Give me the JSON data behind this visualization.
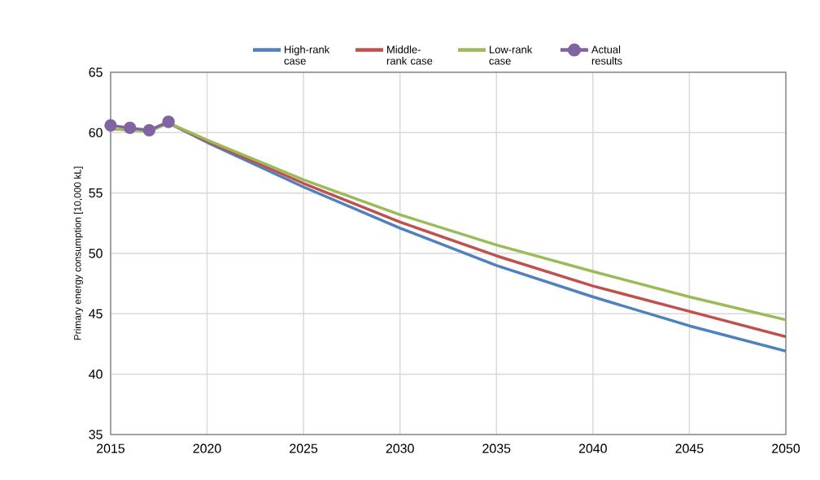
{
  "chart_data": {
    "type": "line",
    "ylabel": "Primary energy consumption [10,000 kL]",
    "xlim": [
      2015,
      2050
    ],
    "xticks": [
      2015,
      2020,
      2025,
      2030,
      2035,
      2040,
      2045,
      2050
    ],
    "ylim": [
      35,
      65
    ],
    "yticks": [
      35,
      40,
      45,
      50,
      55,
      60,
      65
    ],
    "grid": true,
    "legend": "top",
    "line_style": "solid",
    "series": [
      {
        "name": "High-rank case",
        "color": "#4f81bd",
        "marker": "none",
        "x": [
          2018,
          2020,
          2025,
          2030,
          2035,
          2040,
          2045,
          2050
        ],
        "values": [
          60.8,
          59.2,
          55.5,
          52.1,
          49.0,
          46.4,
          44.0,
          41.9
        ]
      },
      {
        "name": "Middle-rank case",
        "color": "#c0504d",
        "marker": "none",
        "x": [
          2018,
          2020,
          2025,
          2030,
          2035,
          2040,
          2045,
          2050
        ],
        "values": [
          60.8,
          59.3,
          55.8,
          52.6,
          49.8,
          47.3,
          45.2,
          43.1
        ]
      },
      {
        "name": "Low-rank case",
        "color": "#9bbb59",
        "marker": "none",
        "x": [
          2015,
          2016,
          2017,
          2018,
          2020,
          2025,
          2030,
          2035,
          2040,
          2045,
          2050
        ],
        "values": [
          60.3,
          60.2,
          60.1,
          60.8,
          59.4,
          56.1,
          53.2,
          50.7,
          48.5,
          46.4,
          44.5
        ]
      },
      {
        "name": "Actual results",
        "color": "#8064a2",
        "marker": "circle",
        "x": [
          2015,
          2016,
          2017,
          2018
        ],
        "values": [
          60.6,
          60.4,
          60.2,
          60.9
        ]
      }
    ]
  }
}
